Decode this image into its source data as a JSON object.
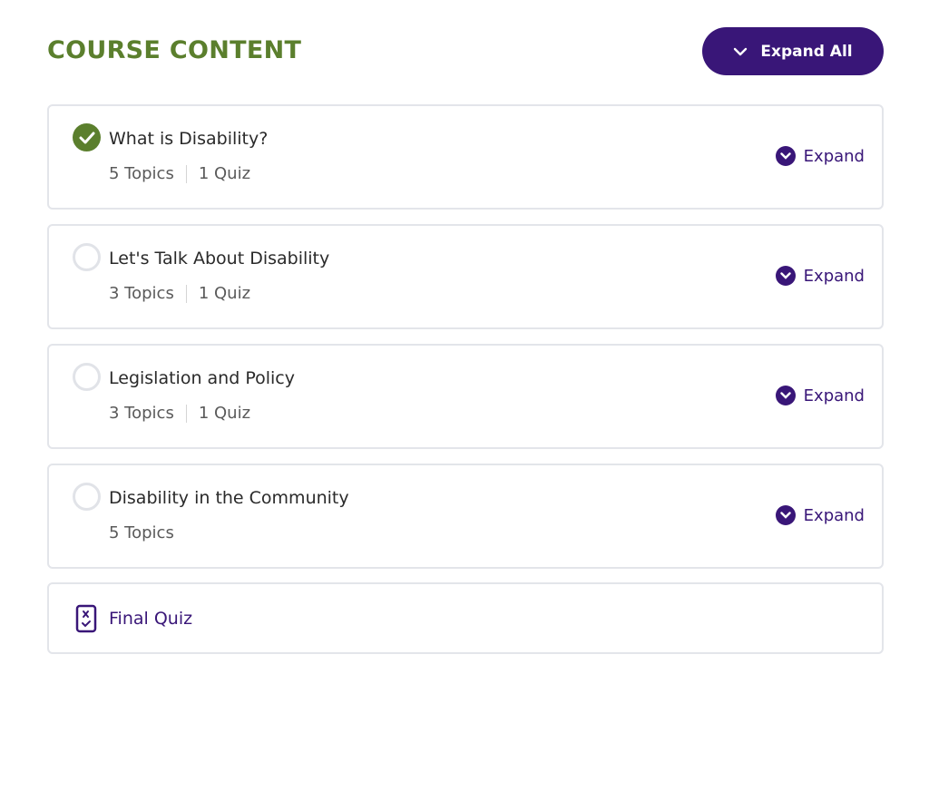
{
  "header": {
    "title": "COURSE CONTENT",
    "expand_all_label": "Expand All"
  },
  "colors": {
    "accent_green": "#5b7f2d",
    "accent_purple": "#391678"
  },
  "lessons": [
    {
      "title": "What is Disability?",
      "topics": "5 Topics",
      "quiz": "1 Quiz",
      "completed": true,
      "expand_label": "Expand"
    },
    {
      "title": "Let's Talk About Disability",
      "topics": "3 Topics",
      "quiz": "1 Quiz",
      "completed": false,
      "expand_label": "Expand"
    },
    {
      "title": "Legislation and Policy",
      "topics": "3 Topics",
      "quiz": "1 Quiz",
      "completed": false,
      "expand_label": "Expand"
    },
    {
      "title": "Disability in the Community",
      "topics": "5 Topics",
      "completed": false,
      "expand_label": "Expand"
    }
  ],
  "final_quiz": {
    "label": "Final Quiz",
    "icon": "quiz-icon"
  }
}
